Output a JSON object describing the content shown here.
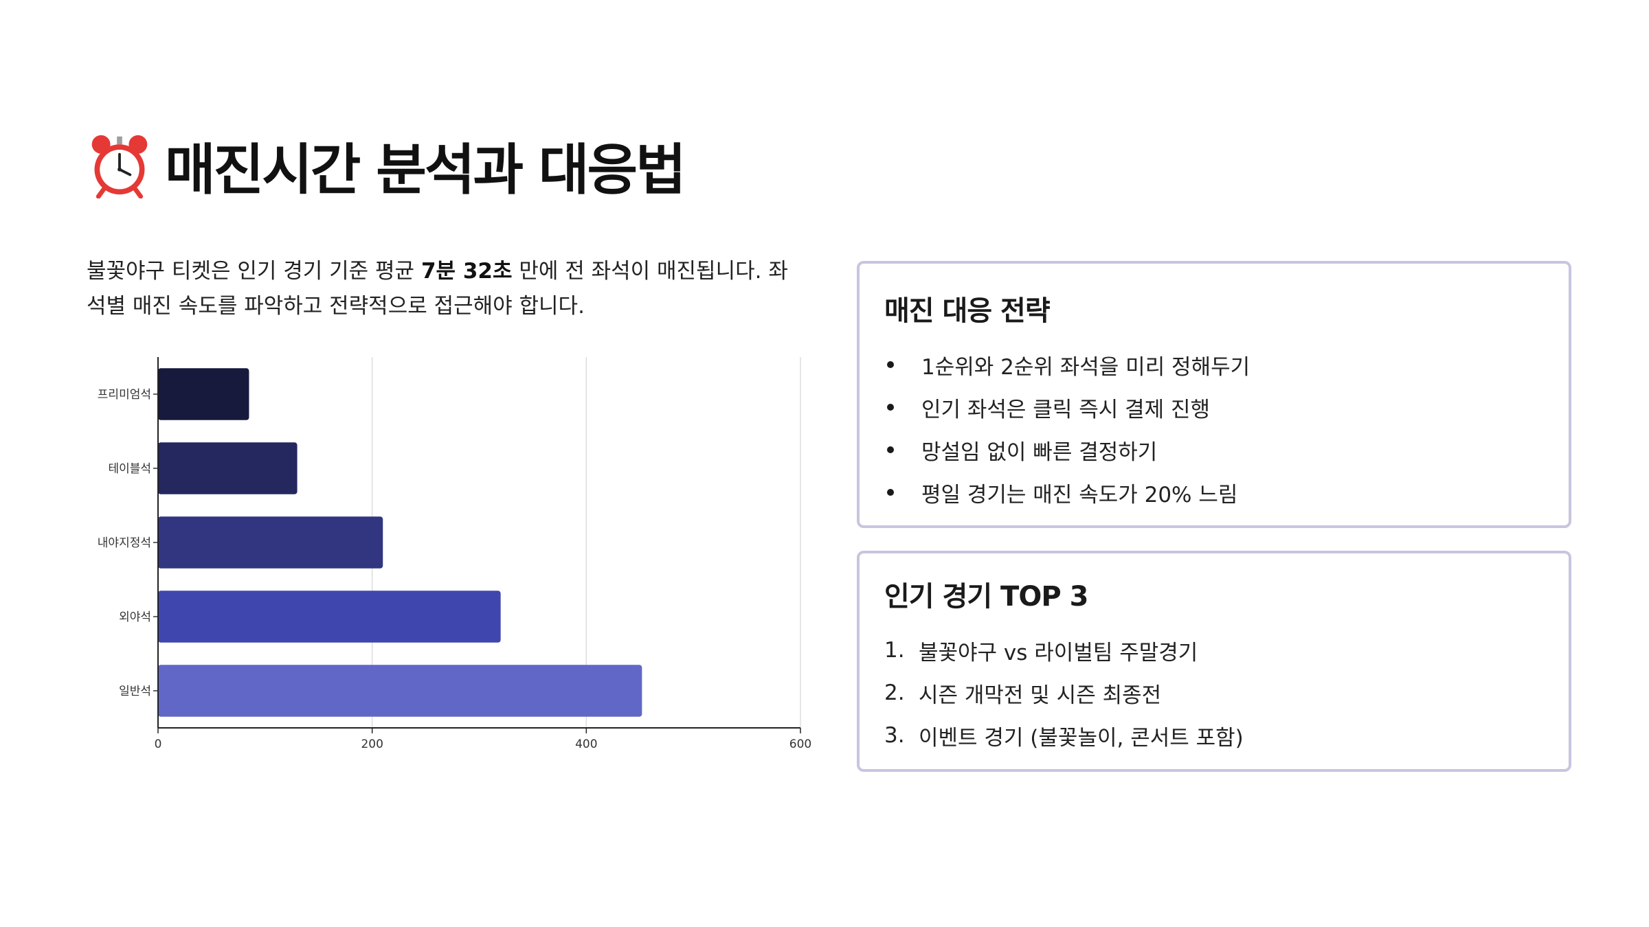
{
  "page": {
    "title": "매진시간 분석과 대응법",
    "title_icon": "alarm-clock-icon",
    "intro_before": "불꽃야구 티켓은 인기 경기 기준 평균 ",
    "intro_bold": "7분 32초",
    "intro_after": " 만에 전 좌석이 매진됩니다. 좌석별 매진 속도를 파악하고 전략적으로 접근해야 합니다."
  },
  "chart_data": {
    "type": "bar",
    "orientation": "horizontal",
    "categories": [
      "프리미엄석",
      "테이블석",
      "내야지정석",
      "외야석",
      "일반석"
    ],
    "values": [
      85,
      130,
      210,
      320,
      452
    ],
    "colors": [
      "#171a3d",
      "#24285f",
      "#323680",
      "#3f47ae",
      "#6167c7"
    ],
    "xlim": [
      0,
      600
    ],
    "xticks": [
      0,
      200,
      400,
      600
    ],
    "grid": true,
    "title": "",
    "xlabel": "",
    "ylabel": ""
  },
  "strategy_card": {
    "title": "매진 대응 전략",
    "items": [
      "1순위와 2순위 좌석을 미리 정해두기",
      "인기 좌석은 클릭 즉시 결제 진행",
      "망설임 없이 빠른 결정하기",
      "평일 경기는 매진 속도가 20% 느림"
    ]
  },
  "top_card": {
    "title": "인기 경기 TOP 3",
    "items": [
      {
        "num": "1.",
        "text": "불꽃야구 vs 라이벌팀 주말경기"
      },
      {
        "num": "2.",
        "text": "시즌 개막전 및 시즌 최종전"
      },
      {
        "num": "3.",
        "text": "이벤트 경기 (불꽃놀이, 콘서트 포함)"
      }
    ]
  }
}
